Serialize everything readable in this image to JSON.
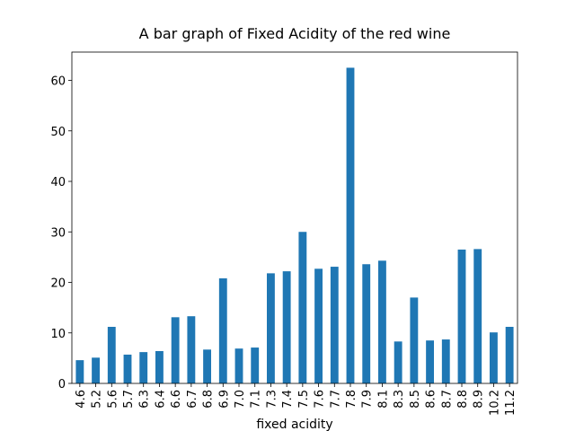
{
  "chart_data": {
    "type": "bar",
    "title": "A bar graph of Fixed Acidity of the red wine",
    "x_label": "fixed acidity",
    "categories": [
      "4.6",
      "5.2",
      "5.6",
      "5.7",
      "6.3",
      "6.4",
      "6.6",
      "6.7",
      "6.8",
      "6.9",
      "7.0",
      "7.1",
      "7.3",
      "7.4",
      "7.5",
      "7.6",
      "7.7",
      "7.8",
      "7.9",
      "8.1",
      "8.3",
      "8.5",
      "8.6",
      "8.7",
      "8.8",
      "8.9",
      "10.2",
      "11.2"
    ],
    "values": [
      4.6,
      5.1,
      11.2,
      5.7,
      6.2,
      6.4,
      13.1,
      13.3,
      6.7,
      20.8,
      6.9,
      7.1,
      21.8,
      22.2,
      30.0,
      22.7,
      23.1,
      62.5,
      23.6,
      24.3,
      8.3,
      17.0,
      8.5,
      8.7,
      26.5,
      26.6,
      10.1,
      11.2
    ],
    "color": "#1f77b4",
    "ylim": [
      0,
      65.6
    ],
    "yticks": [
      0,
      10,
      20,
      30,
      40,
      50,
      60
    ],
    "grid": false
  }
}
